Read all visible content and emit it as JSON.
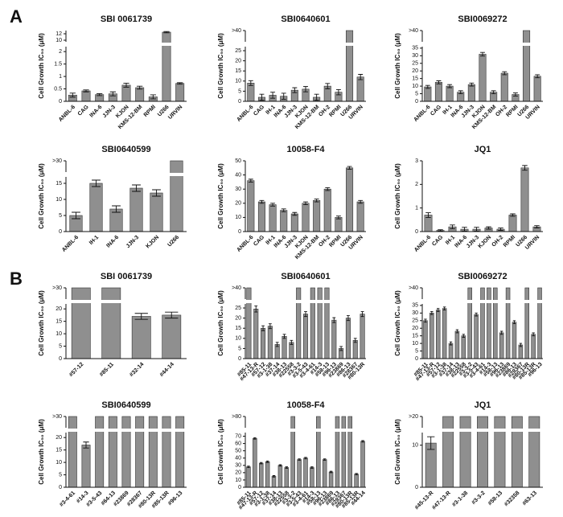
{
  "panels": [
    "A",
    "B"
  ],
  "chart_data": [
    {
      "type": "bar",
      "title": "SBI 0061739",
      "y_label": "Cell Growth IC₅₀ (μM)",
      "color": "#8f8f8f",
      "categories": [
        "ANBL-6",
        "CAG",
        "INA-6",
        "JJN-3",
        "KJON",
        "KMS-12-BM",
        "RPMI",
        "U266",
        "URVIN"
      ],
      "values": [
        0.25,
        0.42,
        0.27,
        0.3,
        0.65,
        0.55,
        0.18,
        12.5,
        0.72
      ],
      "errors": [
        0.08,
        0.04,
        0.04,
        0.08,
        0.08,
        0.06,
        0.08,
        0.2,
        0.03
      ],
      "ylim": [
        0,
        13
      ],
      "ybreak": [
        2.2,
        9.5
      ],
      "yticks": [
        0,
        0.5,
        1,
        1.5,
        2,
        10,
        12
      ]
    },
    {
      "type": "bar",
      "title": "SBI0640601",
      "y_label": "Cell Growth IC₅₀ (μM)",
      "color": "#8f8f8f",
      "categories": [
        "ANBL-6",
        "CAG",
        "IH-1",
        "INA-6",
        "JJN-3",
        "KJON",
        "KMS-12-BM",
        "OH-2",
        "RPMI",
        "U266",
        "URVIN"
      ],
      "values": [
        9,
        2,
        3,
        2.5,
        5.5,
        6,
        2,
        7.5,
        4.5,
        40,
        12
      ],
      "errors": [
        1.2,
        1.5,
        1.5,
        1.5,
        1.2,
        1.3,
        1.5,
        1.3,
        1.3,
        null,
        1.3
      ],
      "ylim": [
        0,
        40
      ],
      "ybreak": [
        27,
        39
      ],
      "yticks": [
        0,
        5,
        10,
        15,
        20,
        25,
        {
          "value": 40,
          "label": ">40"
        }
      ]
    },
    {
      "type": "bar",
      "title": "SBI0069272",
      "y_label": "Cell Growth IC₅₀ (μM)",
      "color": "#8f8f8f",
      "categories": [
        "ANBL-6",
        "CAG",
        "IH-1",
        "INA-6",
        "JJN-3",
        "KJON",
        "KMS-12-BM",
        "OH-2",
        "RPMI",
        "U266",
        "URVIN"
      ],
      "values": [
        9.5,
        12.5,
        10,
        6,
        11,
        31,
        6,
        18.5,
        4.5,
        40,
        16.5
      ],
      "errors": [
        1,
        1,
        1,
        1,
        1,
        1.2,
        1,
        1,
        1,
        null,
        1
      ],
      "ylim": [
        0,
        40
      ],
      "ybreak": [
        36,
        39
      ],
      "yticks": [
        0,
        5,
        10,
        15,
        20,
        25,
        30,
        35,
        {
          "value": 40,
          "label": ">40"
        }
      ]
    },
    {
      "type": "bar",
      "title": "SBI0640599",
      "y_label": "Cell Growth IC₅₀ (μM)",
      "color": "#8f8f8f",
      "categories": [
        "ANBL-6",
        "IH-1",
        "INA-6",
        "JJN-3",
        "KJON",
        "U266"
      ],
      "values": [
        5,
        15,
        7,
        13.5,
        12,
        30
      ],
      "errors": [
        1,
        1,
        1,
        1,
        1,
        null
      ],
      "ylim": [
        0,
        30
      ],
      "ybreak": [
        17,
        29
      ],
      "yticks": [
        0,
        5,
        10,
        15,
        {
          "value": 30,
          "label": ">30"
        }
      ]
    },
    {
      "type": "bar",
      "title": "10058-F4",
      "y_label": "Cell Growth IC₅₀ (μM)",
      "color": "#8f8f8f",
      "categories": [
        "ANBL-6",
        "CAG",
        "IH-1",
        "INA-6",
        "JJN-3",
        "KJON",
        "KMS-12-BM",
        "OH-2",
        "RPMI",
        "U266",
        "URVIN"
      ],
      "values": [
        36,
        21,
        19,
        15,
        12.5,
        20,
        22,
        30,
        10,
        45,
        21
      ],
      "errors": [
        1,
        1,
        1,
        1,
        1,
        1,
        1,
        1,
        1,
        1,
        1
      ],
      "ylim": [
        0,
        50
      ],
      "yticks": [
        0,
        10,
        20,
        30,
        40,
        50
      ]
    },
    {
      "type": "bar",
      "title": "JQ1",
      "y_label": "Cell Growth IC₅₀ (μM)",
      "color": "#8f8f8f",
      "categories": [
        "ANBL-6",
        "CAG",
        "IH-1",
        "INA-6",
        "JJN-3",
        "KJON",
        "OH-2",
        "RPMI",
        "U266",
        "URVIN"
      ],
      "values": [
        0.7,
        0.05,
        0.2,
        0.1,
        0.1,
        0.15,
        0.1,
        0.7,
        2.7,
        0.2
      ],
      "errors": [
        0.1,
        0.03,
        0.08,
        0.08,
        0.08,
        0.05,
        0.05,
        0.05,
        0.1,
        0.05
      ],
      "ylim": [
        0,
        3
      ],
      "yticks": [
        0,
        1,
        2,
        3
      ]
    },
    {
      "type": "bar",
      "title": "SBI 0061739",
      "y_label": "Cell Growth IC₅₀ (μM)",
      "color": "#8f8f8f",
      "categories": [
        "#57-12",
        "#85-11",
        "#32-14",
        "#44-14"
      ],
      "values": [
        30,
        30,
        17,
        17.5
      ],
      "errors": [
        null,
        null,
        1.2,
        1.2
      ],
      "ylim": [
        0,
        30
      ],
      "ybreak": [
        22,
        29
      ],
      "yticks": [
        0,
        5,
        10,
        15,
        20,
        {
          "value": 30,
          "label": ">30"
        }
      ]
    },
    {
      "type": "bar",
      "title": "SBI0640601",
      "y_label": "Cell Growth IC₅₀ (μM)",
      "color": "#8f8f8f",
      "categories": [
        "#85-11",
        "#47-13-R",
        "#57-12",
        "#3-1-38",
        "#37-14",
        "#38-13",
        "#22558",
        "#3-3-2",
        "#3-5-43",
        "#3-4-61",
        "#14-3",
        "#58-13",
        "#96-13",
        "#23869",
        "#86-13",
        "#28367",
        "#80-13R"
      ],
      "values": [
        40,
        24.5,
        15,
        16,
        7,
        11,
        8,
        40,
        22,
        40,
        40,
        40,
        19,
        5,
        20,
        9,
        22
      ],
      "errors": [
        null,
        1.5,
        1.2,
        1.2,
        1,
        1,
        1,
        null,
        1.2,
        null,
        null,
        null,
        1.2,
        1,
        1.2,
        1,
        1.2
      ],
      "ylim": [
        0,
        40
      ],
      "ybreak": [
        27,
        39
      ],
      "yticks": [
        0,
        5,
        10,
        15,
        20,
        25,
        {
          "value": 40,
          "label": ">40"
        }
      ]
    },
    {
      "type": "bar",
      "title": "SBI0069272",
      "y_label": "Cell Growth IC₅₀ (μM)",
      "color": "#8f8f8f",
      "categories": [
        "#85-11",
        "#47-13-R",
        "#57-12",
        "#3-1-38",
        "#37-14",
        "#38-13",
        "#22558",
        "#3-3-2",
        "#3-5-43",
        "#3-4-61",
        "#14-3",
        "#58-13",
        "#96-13",
        "#23869",
        "#86-13",
        "#28367",
        "#80-13R",
        "#85-13R",
        "#96-13"
      ],
      "values": [
        25,
        30,
        32,
        33,
        10,
        18,
        15,
        40,
        29,
        40,
        40,
        40,
        17,
        40,
        24,
        9,
        40,
        16,
        40
      ],
      "errors": [
        1,
        1,
        1,
        1,
        1,
        1,
        1,
        null,
        1,
        null,
        null,
        null,
        1,
        null,
        1,
        1,
        null,
        1,
        null
      ],
      "ylim": [
        0,
        40
      ],
      "ybreak": [
        36,
        39
      ],
      "yticks": [
        0,
        5,
        10,
        15,
        20,
        25,
        30,
        35,
        {
          "value": 40,
          "label": ">40"
        }
      ]
    },
    {
      "type": "bar",
      "title": "SBI0640599",
      "y_label": "Cell Growth IC₅₀ (μM)",
      "color": "#8f8f8f",
      "categories": [
        "#3-4-61",
        "#14-3",
        "#3-5-43",
        "#64-13",
        "#23869",
        "#28367",
        "#80-13R",
        "#85-13R",
        "#96-13"
      ],
      "values": [
        30,
        17,
        30,
        30,
        30,
        30,
        30,
        30,
        30
      ],
      "errors": [
        null,
        1.2,
        null,
        null,
        null,
        null,
        null,
        null,
        null
      ],
      "ylim": [
        0,
        30
      ],
      "ybreak": [
        22,
        29
      ],
      "yticks": [
        0,
        5,
        10,
        15,
        20,
        {
          "value": 30,
          "label": ">30"
        }
      ]
    },
    {
      "type": "bar",
      "title": "10058-F4",
      "y_label": "Cell Growth IC₅₀ (μM)",
      "color": "#8f8f8f",
      "categories": [
        "#85-11",
        "#47-13-R",
        "#57-12",
        "#3-1-38",
        "#37-14",
        "#38-13",
        "#22558",
        "#3-3-2",
        "#3-5-43",
        "#3-4-61",
        "#14-3",
        "#58-13",
        "#96-13",
        "#23869",
        "#86-13",
        "#28367",
        "#80-13R",
        "#85-13R",
        "#44-14"
      ],
      "values": [
        28,
        67,
        33,
        35,
        15,
        30,
        27,
        80,
        38,
        40,
        27,
        80,
        38,
        21,
        80,
        80,
        80,
        18,
        63
      ],
      "errors": [
        1,
        1,
        1,
        1,
        1,
        1,
        1,
        null,
        1,
        1,
        1,
        null,
        1,
        1,
        null,
        null,
        null,
        1,
        1
      ],
      "ylim": [
        0,
        80
      ],
      "ybreak": [
        75,
        79
      ],
      "yticks": [
        0,
        10,
        20,
        30,
        40,
        50,
        60,
        70,
        {
          "value": 80,
          "label": ">80"
        }
      ]
    },
    {
      "type": "bar",
      "title": "JQ1",
      "y_label": "Cell Growth IC₅₀ (μM)",
      "color": "#8f8f8f",
      "categories": [
        "#45-13-R",
        "#47-13-R",
        "#3-1-38",
        "#3-3-2",
        "#58-13",
        "#32358",
        "#63-13"
      ],
      "values": [
        10.5,
        20,
        20,
        20,
        20,
        20,
        20
      ],
      "errors": [
        1.5,
        null,
        null,
        null,
        null,
        null,
        null
      ],
      "ylim": [
        0,
        20
      ],
      "ybreak": [
        13,
        19
      ],
      "yticks": [
        0,
        10,
        {
          "value": 20,
          "label": ">20"
        }
      ]
    }
  ]
}
